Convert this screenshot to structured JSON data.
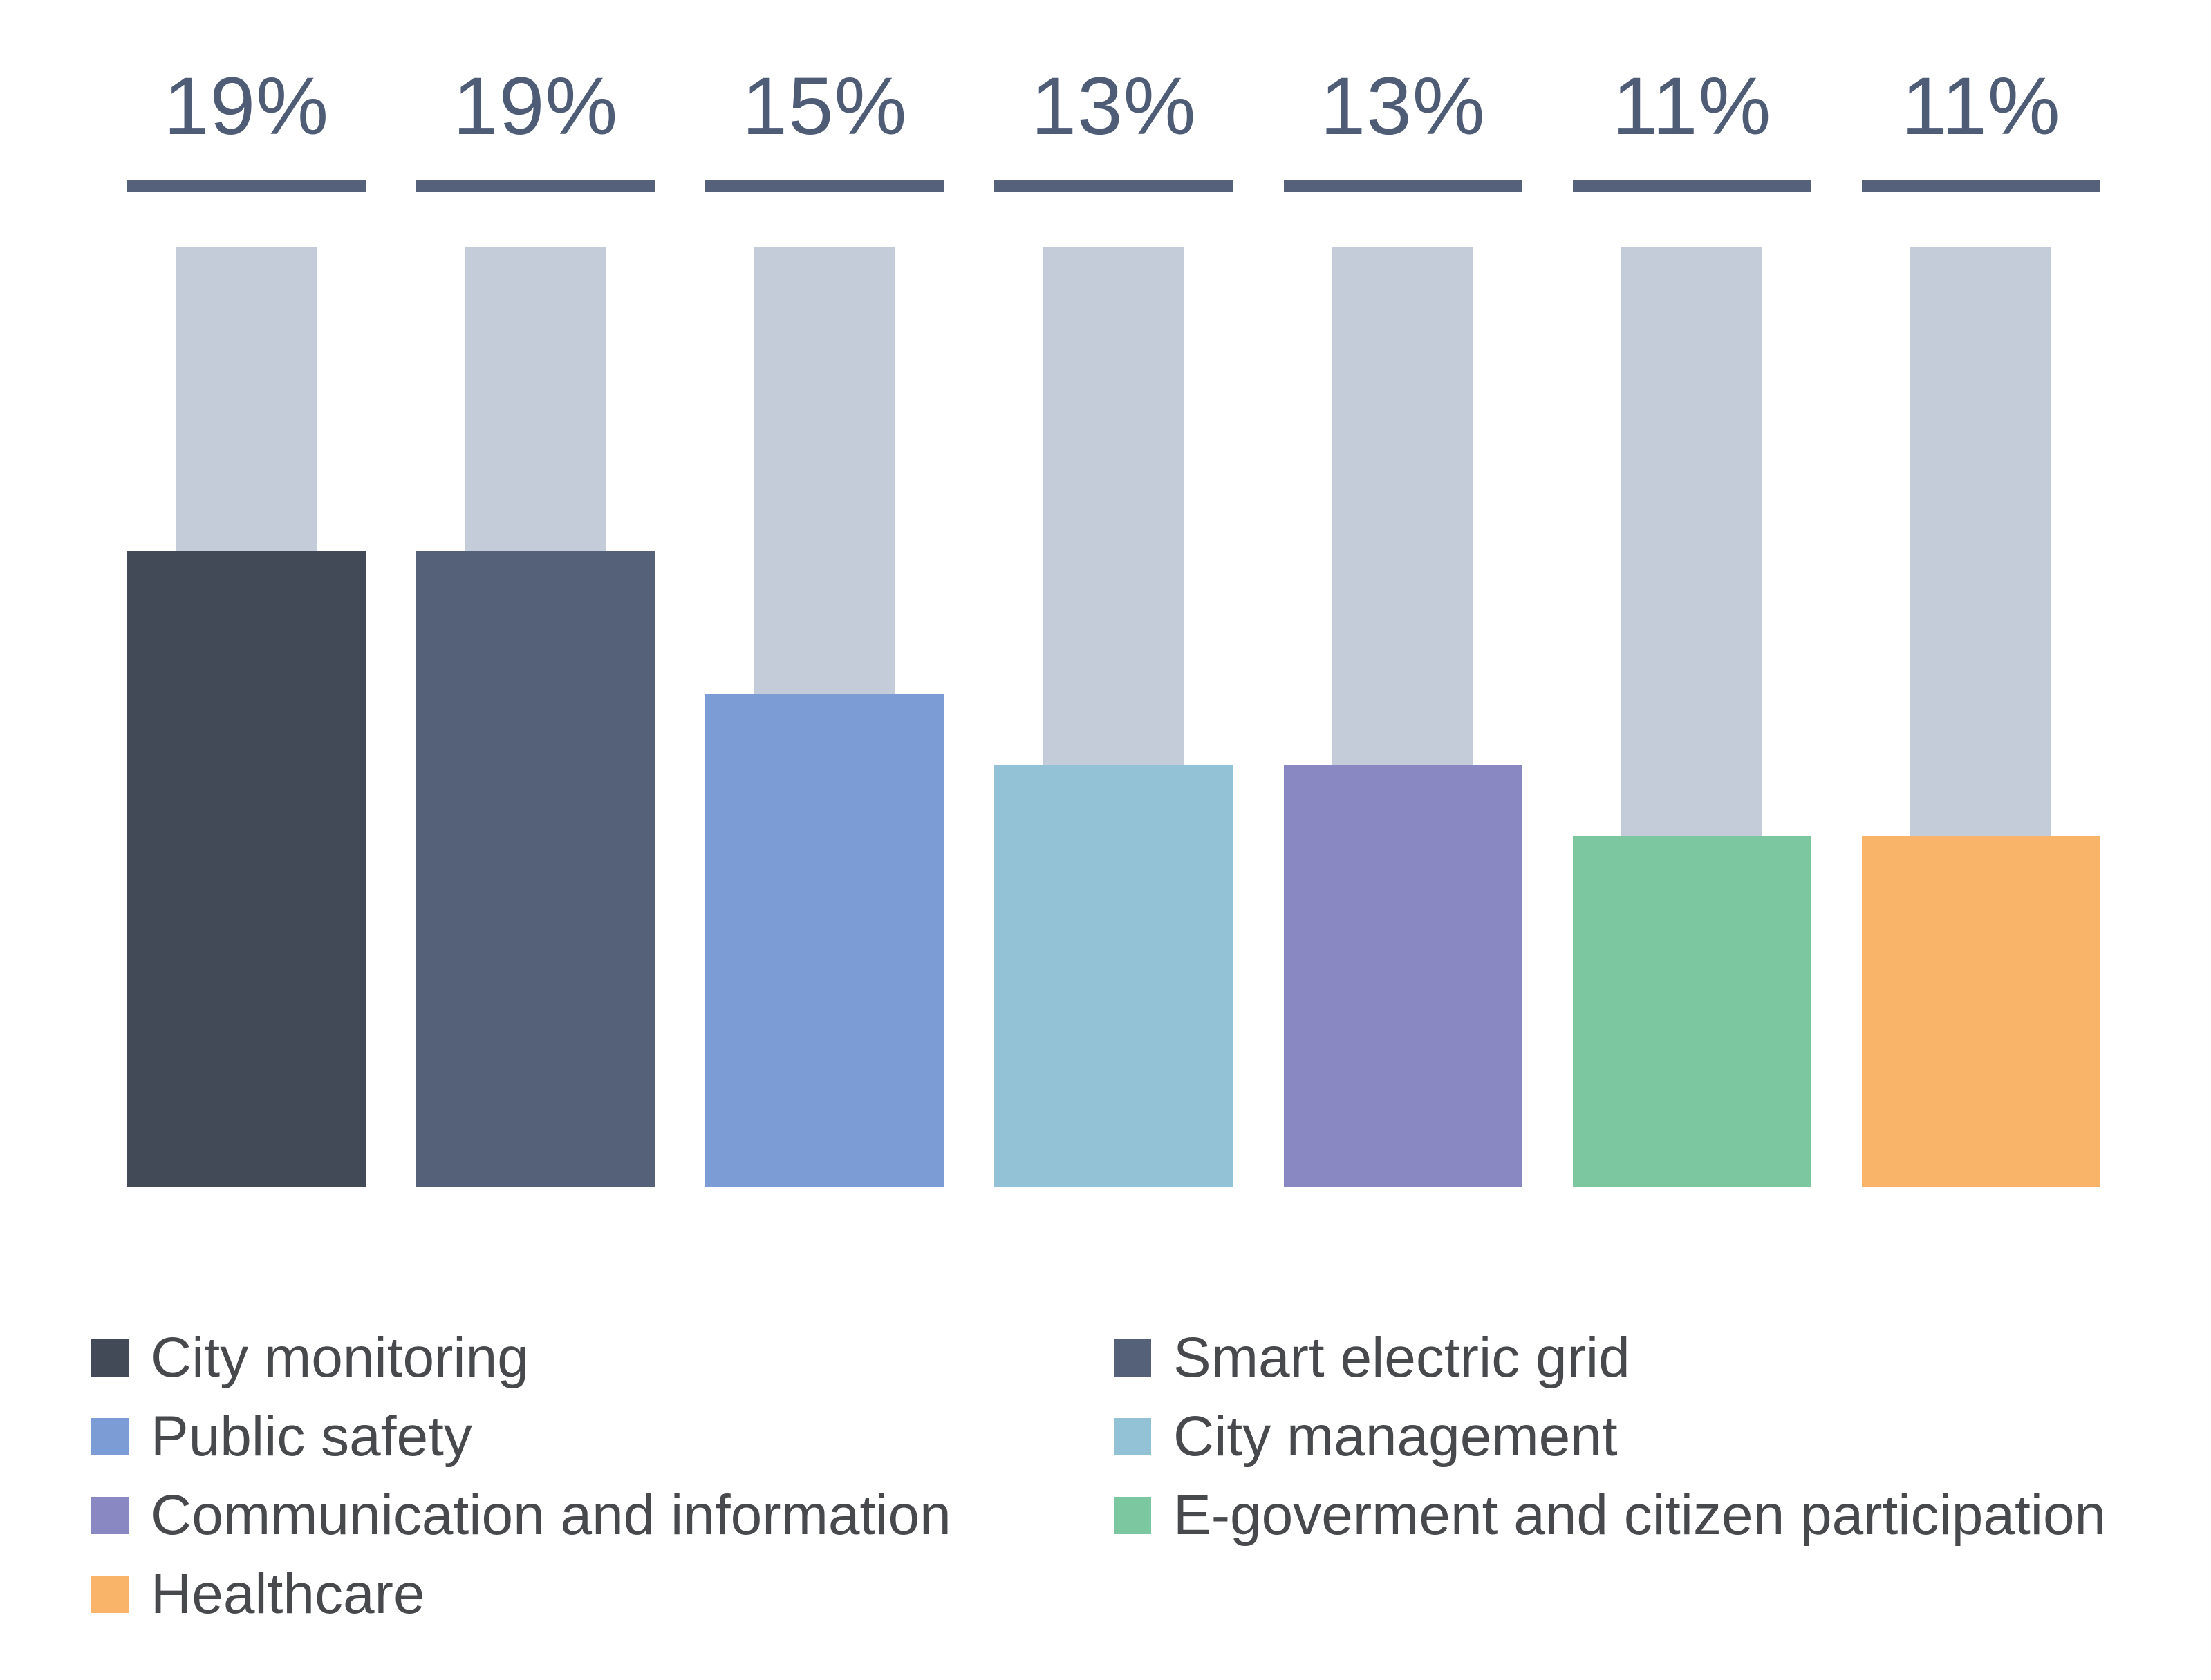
{
  "chart_data": {
    "type": "bar",
    "title": "",
    "xlabel": "",
    "ylabel": "",
    "unit": "%",
    "ylim": [
      0,
      19
    ],
    "grid": false,
    "legend_position": "bottom",
    "legend_columns": 2,
    "categories": [
      "City monitoring",
      "Smart electric grid",
      "Public safety",
      "City management",
      "Communication and information",
      "E-goverment and citizen participation",
      "Healthcare"
    ],
    "values": [
      19,
      19,
      15,
      13,
      13,
      11,
      11
    ],
    "value_labels": [
      "19%",
      "19%",
      "15%",
      "13%",
      "13%",
      "11%",
      "11%"
    ],
    "colors": [
      "#424a58",
      "#556079",
      "#7b9cd4",
      "#93c2d6",
      "#8a88c2",
      "#7cc7a0",
      "#f9b469"
    ],
    "style": {
      "background_bar_color": "#c3ccd8",
      "rule_color": "#55607a",
      "value_label_color": "#4e5c76",
      "legend_text_color": "#47494d",
      "page_background": "#ffffff"
    }
  }
}
